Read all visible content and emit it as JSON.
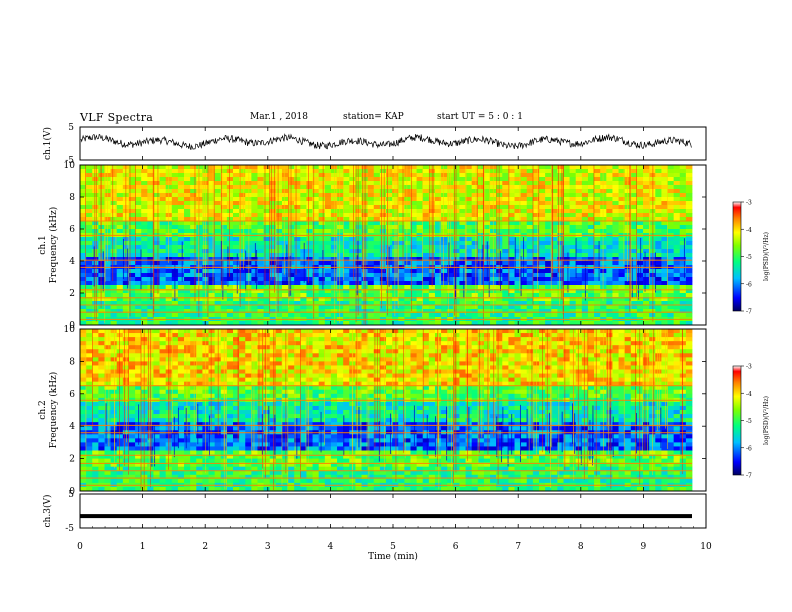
{
  "header": {
    "title": "VLF Spectra",
    "date": "Mar.1 , 2018",
    "station": "station= KAP",
    "start_ut": "start UT = 5 : 0 : 1"
  },
  "chart_data": [
    {
      "type": "line",
      "panel": "ch1-waveform",
      "ylabel": "ch.1(V)",
      "yticks": [
        "5",
        "-5"
      ],
      "ylim": [
        -5,
        5
      ],
      "xlim": [
        0,
        10
      ],
      "description_values": "noisy waveform oscillating roughly between -1.5 and 2.5 V",
      "series": [
        {
          "amplitude_range": [
            -1.5,
            2.5
          ]
        }
      ]
    },
    {
      "type": "heatmap",
      "panel": "ch1-spectrogram",
      "ylabel": "ch.1 Frequency (kHz)",
      "yticks": [
        "0",
        "2",
        "4",
        "6",
        "8",
        "10"
      ],
      "ylim": [
        0,
        10
      ],
      "xlim": [
        0,
        9.8
      ],
      "colorbar": {
        "label": "log(PSD)(V²/Hz)",
        "ticks": [
          "-3",
          "-4",
          "-5",
          "-6",
          "-7"
        ],
        "range": [
          -7,
          -3
        ]
      }
    },
    {
      "type": "heatmap",
      "panel": "ch2-spectrogram",
      "ylabel": "ch.2 Frequency (kHz)",
      "yticks": [
        "0",
        "2",
        "4",
        "6",
        "8",
        "10"
      ],
      "ylim": [
        0,
        10
      ],
      "xlim": [
        0,
        9.8
      ],
      "colorbar": {
        "label": "log(PSD)(V²/Hz)",
        "ticks": [
          "-3",
          "-4",
          "-5",
          "-6",
          "-7"
        ],
        "range": [
          -7,
          -3
        ]
      }
    },
    {
      "type": "line",
      "panel": "ch3-waveform",
      "ylabel": "ch.3(V)",
      "yticks": [
        "5",
        "-5"
      ],
      "ylim": [
        -5,
        5
      ],
      "xlim": [
        0,
        10
      ],
      "series": [
        {
          "constant_value": -1.5
        }
      ]
    }
  ],
  "xaxis": {
    "label": "Time (min)",
    "ticks": [
      "0",
      "1",
      "2",
      "3",
      "4",
      "5",
      "6",
      "7",
      "8",
      "9",
      "10"
    ],
    "range": [
      0,
      10
    ]
  }
}
